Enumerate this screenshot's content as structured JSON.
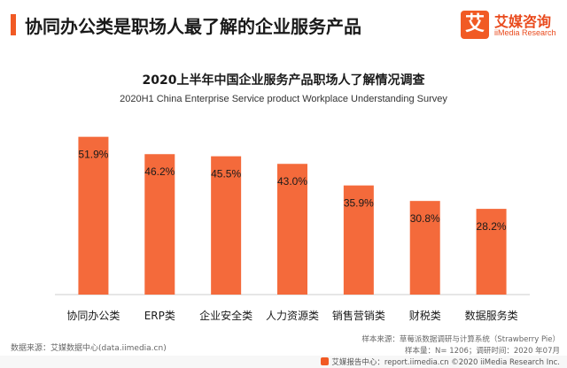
{
  "header": {
    "title": "协同办公类是职场人最了解的企业服务产品",
    "logo_mark": "艾",
    "logo_cn": "艾媒咨询",
    "logo_en": "iiMedia Research"
  },
  "colors": {
    "accent": "#f15a24",
    "bar": "#f46a3b"
  },
  "chart_data": {
    "type": "bar",
    "title": "2020上半年中国企业服务产品职场人了解情况调查",
    "subtitle": "2020H1 China Enterprise Service product Workplace Understanding Survey",
    "categories": [
      "协同办公类",
      "ERP类",
      "企业安全类",
      "人力资源类",
      "销售营销类",
      "财税类",
      "数据服务类"
    ],
    "values": [
      51.9,
      46.2,
      45.5,
      43.0,
      35.9,
      30.8,
      28.2
    ],
    "value_labels": [
      "51.9%",
      "46.2%",
      "45.5%",
      "43.0%",
      "35.9%",
      "30.8%",
      "28.2%"
    ],
    "unit": "%",
    "ylim": [
      0,
      55
    ],
    "grid": false,
    "legend": "none"
  },
  "notes": {
    "source_left": "数据来源：艾媒数据中心(data.iimedia.cn)",
    "sample_source": "样本来源：草莓派数据调研与计算系统（Strawberry Pie）",
    "sample_size": "样本量：N= 1206；调研时间：2020 年07月"
  },
  "footer": {
    "text": "艾媒报告中心：report.iimedia.cn ©2020 iiMedia Research Inc."
  }
}
